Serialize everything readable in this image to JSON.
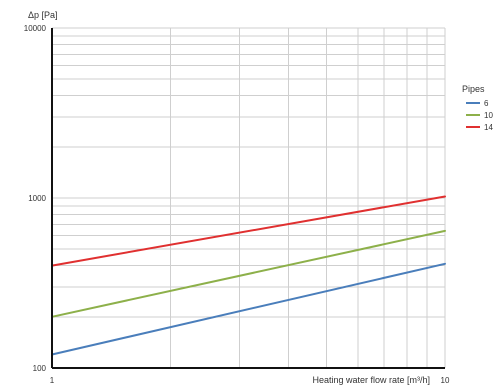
{
  "chart_data": {
    "type": "line",
    "x_scale": "log",
    "y_scale": "log",
    "xlim": [
      1,
      10
    ],
    "ylim": [
      100,
      10000
    ],
    "xlabel": "Heating water flow rate [m³/h]",
    "ylabel": "Δp [Pa]",
    "x_ticks": [
      "1",
      "10"
    ],
    "y_ticks": [
      "100",
      "1000",
      "10000"
    ],
    "grid": true,
    "legend": {
      "title": "Pipes",
      "placement": "right"
    },
    "series": [
      {
        "name": "6",
        "color": "#4a7ebb",
        "x": [
          1,
          10
        ],
        "y": [
          120,
          410
        ]
      },
      {
        "name": "10",
        "color": "#8db04a",
        "x": [
          1,
          10
        ],
        "y": [
          200,
          640
        ]
      },
      {
        "name": "14",
        "color": "#e03030",
        "x": [
          1,
          10
        ],
        "y": [
          400,
          1020
        ]
      }
    ]
  }
}
